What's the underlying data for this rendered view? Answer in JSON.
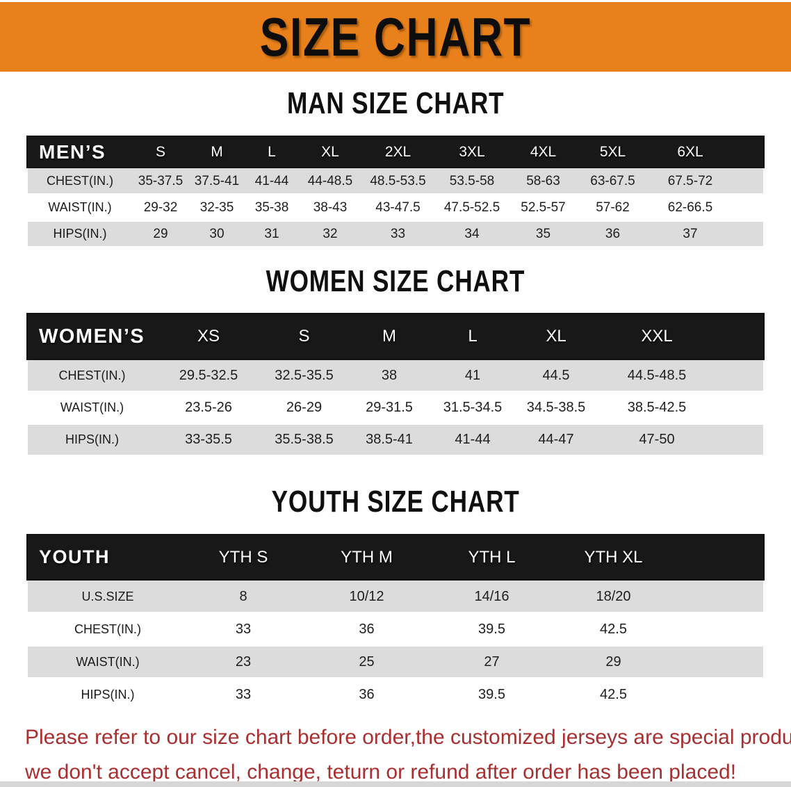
{
  "banner": {
    "title": "SIZE CHART",
    "bg_color": "#e8811b",
    "text_color": "#0d0d0d"
  },
  "colors": {
    "table_header_bg": "#181818",
    "table_header_text": "#ffffff",
    "stripe_gray": "#dcdcdc",
    "disclaimer_red": "#a82f2f"
  },
  "sections": [
    {
      "heading": "MAN SIZE CHART",
      "table": {
        "label": "MEN’S",
        "columns": [
          "S",
          "M",
          "L",
          "XL",
          "2XL",
          "3XL",
          "4XL",
          "5XL",
          "6XL"
        ],
        "rows": [
          {
            "label": "CHEST(IN.)",
            "values": [
              "35-37.5",
              "37.5-41",
              "41-44",
              "44-48.5",
              "48.5-53.5",
              "53.5-58",
              "58-63",
              "63-67.5",
              "67.5-72"
            ]
          },
          {
            "label": "WAIST(IN.)",
            "values": [
              "29-32",
              "32-35",
              "35-38",
              "38-43",
              "43-47.5",
              "47.5-52.5",
              "52.5-57",
              "57-62",
              "62-66.5"
            ]
          },
          {
            "label": "HIPS(IN.)",
            "values": [
              "29",
              "30",
              "31",
              "32",
              "33",
              "34",
              "35",
              "36",
              "37"
            ]
          }
        ]
      }
    },
    {
      "heading": "WOMEN SIZE CHART",
      "table": {
        "label": "WOMEN’S",
        "columns": [
          "XS",
          "S",
          "M",
          "L",
          "XL",
          "XXL"
        ],
        "rows": [
          {
            "label": "CHEST(IN.)",
            "values": [
              "29.5-32.5",
              "32.5-35.5",
              "38",
              "41",
              "44.5",
              "44.5-48.5"
            ]
          },
          {
            "label": "WAIST(IN.)",
            "values": [
              "23.5-26",
              "26-29",
              "29-31.5",
              "31.5-34.5",
              "34.5-38.5",
              "38.5-42.5"
            ]
          },
          {
            "label": "HIPS(IN.)",
            "values": [
              "33-35.5",
              "35.5-38.5",
              "38.5-41",
              "41-44",
              "44-47",
              "47-50"
            ]
          }
        ]
      }
    },
    {
      "heading": "YOUTH SIZE CHART",
      "table": {
        "label": "YOUTH",
        "columns": [
          "YTH S",
          "YTH M",
          "YTH L",
          "YTH XL"
        ],
        "rows": [
          {
            "label": "U.S.SIZE",
            "values": [
              "8",
              "10/12",
              "14/16",
              "18/20"
            ]
          },
          {
            "label": "CHEST(IN.)",
            "values": [
              "33",
              "36",
              "39.5",
              "42.5"
            ]
          },
          {
            "label": "WAIST(IN.)",
            "values": [
              "23",
              "25",
              "27",
              "29"
            ]
          },
          {
            "label": "HIPS(IN.)",
            "values": [
              "33",
              "36",
              "39.5",
              "42.5"
            ]
          }
        ]
      }
    }
  ],
  "disclaimer": {
    "lines": [
      "Please refer to our size chart before order,the customized jerseys are special products,",
      "we don't accept cancel, change, teturn or refund after order has been placed!"
    ]
  }
}
